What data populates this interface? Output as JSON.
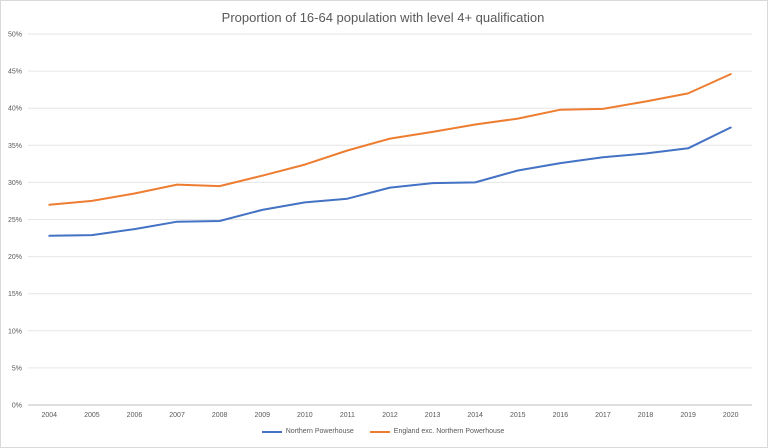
{
  "chart_data": {
    "type": "line",
    "title": "Proportion of 16-64 population with level 4+ qualification",
    "xlabel": "",
    "ylabel": "",
    "categories": [
      "2004",
      "2005",
      "2006",
      "2007",
      "2008",
      "2009",
      "2010",
      "2011",
      "2012",
      "2013",
      "2014",
      "2015",
      "2016",
      "2017",
      "2018",
      "2019",
      "2020"
    ],
    "yticks": [
      "0%",
      "5%",
      "10%",
      "15%",
      "20%",
      "25%",
      "30%",
      "35%",
      "40%",
      "45%",
      "50%"
    ],
    "ylim": [
      0,
      50
    ],
    "grid": true,
    "legend_position": "bottom",
    "series": [
      {
        "name": "Northern Powerhouse",
        "color": "#4472c4",
        "values": [
          22.8,
          22.9,
          23.7,
          24.7,
          24.8,
          26.3,
          27.3,
          27.8,
          29.3,
          29.9,
          30.0,
          31.6,
          32.6,
          33.4,
          33.9,
          34.6,
          37.4
        ]
      },
      {
        "name": "England exc. Northern Powerhouse",
        "color": "#ed7d31",
        "values": [
          27.0,
          27.5,
          28.5,
          29.7,
          29.5,
          30.9,
          32.4,
          34.3,
          35.9,
          36.8,
          37.8,
          38.6,
          39.8,
          39.9,
          40.9,
          42.0,
          44.6
        ]
      }
    ]
  }
}
